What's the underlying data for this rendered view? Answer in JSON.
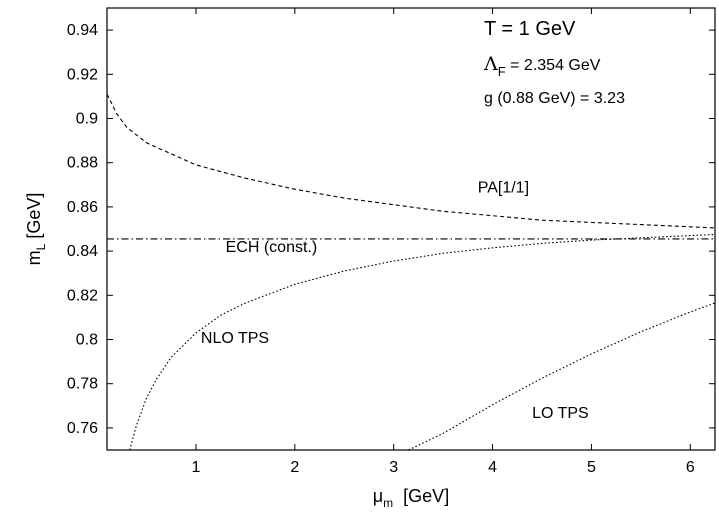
{
  "chart_data": {
    "type": "line",
    "xlabel_main": "μ",
    "xlabel_sub": "m",
    "xlabel_unit": "[GeV]",
    "ylabel_main": "m",
    "ylabel_sub": "L",
    "ylabel_unit": "[GeV]",
    "xlim": [
      0.1,
      6.25
    ],
    "ylim": [
      0.75,
      0.95
    ],
    "x_ticks": [
      1,
      2,
      3,
      4,
      5,
      6
    ],
    "y_ticks": [
      0.76,
      0.78,
      0.8,
      0.82,
      0.84,
      0.86,
      0.88,
      0.9,
      0.92,
      0.94
    ],
    "annotations": {
      "temperature": "T = 1 GeV",
      "lambda_symbol": "Λ",
      "lambda_sub": "F",
      "lambda_value": " = 2.354 GeV",
      "coupling": "g (0.88 GeV) = 3.23"
    },
    "grid": false,
    "series": [
      {
        "name": "PA[1/1]",
        "style": "dashed",
        "x": [
          0.1,
          0.2,
          0.3,
          0.5,
          0.75,
          1,
          1.5,
          2,
          2.5,
          3,
          3.5,
          4,
          4.5,
          5,
          5.5,
          6,
          6.25
        ],
        "y": [
          0.911,
          0.902,
          0.896,
          0.889,
          0.884,
          0.879,
          0.873,
          0.868,
          0.864,
          0.861,
          0.858,
          0.856,
          0.854,
          0.853,
          0.852,
          0.851,
          0.8505
        ]
      },
      {
        "name": "ECH (const.)",
        "style": "dashdot",
        "x": [
          0.1,
          6.25
        ],
        "y": [
          0.8455,
          0.8455
        ]
      },
      {
        "name": "NLO TPS",
        "style": "dotted",
        "x": [
          0.33,
          0.4,
          0.5,
          0.6,
          0.75,
          1,
          1.25,
          1.5,
          2,
          2.5,
          3,
          3.5,
          4,
          4.5,
          5,
          5.5,
          6,
          6.25
        ],
        "y": [
          0.75,
          0.7615,
          0.7735,
          0.782,
          0.792,
          0.803,
          0.811,
          0.8165,
          0.825,
          0.831,
          0.8355,
          0.839,
          0.8415,
          0.8435,
          0.845,
          0.846,
          0.847,
          0.8475
        ]
      },
      {
        "name": "LO TPS",
        "style": "dotted",
        "x": [
          3.15,
          3.5,
          4,
          4.5,
          5,
          5.5,
          6,
          6.25
        ],
        "y": [
          0.75,
          0.7575,
          0.7705,
          0.7825,
          0.7935,
          0.8035,
          0.8125,
          0.8165
        ]
      }
    ],
    "labels": [
      {
        "text": "PA[1/1]",
        "x": 3.85,
        "y": 0.8665
      },
      {
        "text": "ECH (const.)",
        "x": 1.3,
        "y": 0.8395
      },
      {
        "text": "NLO TPS",
        "x": 1.05,
        "y": 0.7985
      },
      {
        "text": "LO TPS",
        "x": 4.4,
        "y": 0.7645
      }
    ]
  }
}
